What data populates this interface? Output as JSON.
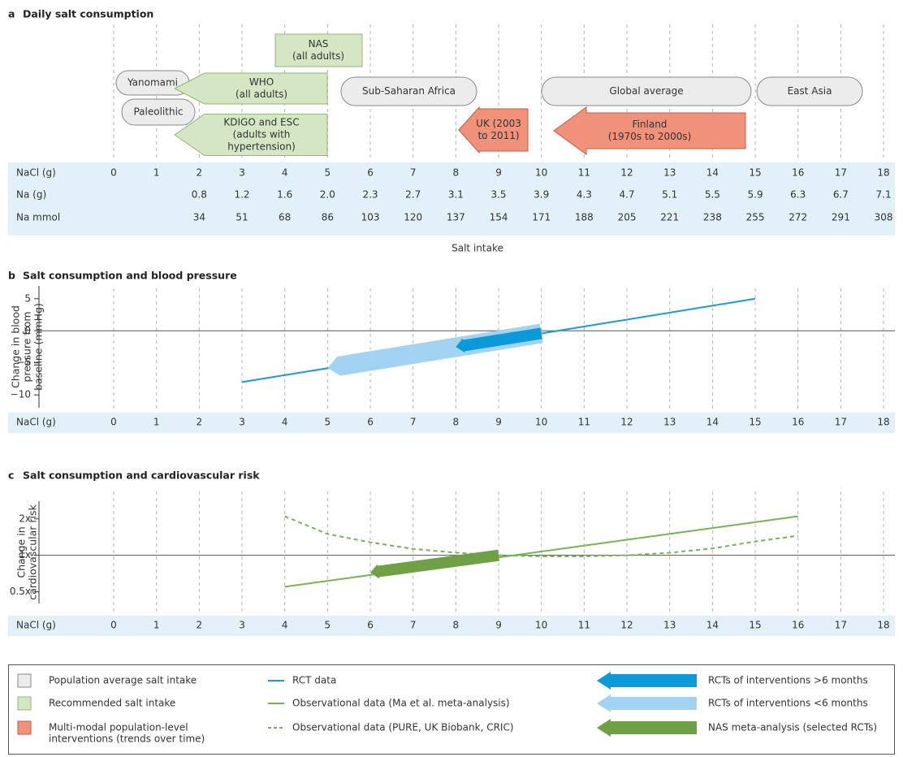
{
  "panel_a": {
    "label": "a",
    "title": "Daily salt consumption",
    "population": [
      {
        "lines": [
          "Yanomami"
        ]
      },
      {
        "lines": [
          "Paleolithic"
        ]
      },
      {
        "lines": [
          "Sub-Saharan Africa"
        ]
      },
      {
        "lines": [
          "Global average"
        ]
      },
      {
        "lines": [
          "East Asia"
        ]
      }
    ],
    "recommended": [
      {
        "lines": [
          "NAS",
          "(all adults)"
        ]
      },
      {
        "lines": [
          "WHO",
          "(all adults)"
        ]
      },
      {
        "lines": [
          "KDIGO and ESC",
          "(adults with",
          "hypertension)"
        ]
      }
    ],
    "interventions": [
      {
        "lines": [
          "UK (2003",
          "to 2011)"
        ]
      },
      {
        "lines": [
          "Finland",
          "(1970s to 2000s)"
        ]
      }
    ],
    "table": [
      {
        "name": "NaCl (g)",
        "cells": [
          "0",
          "1",
          "2",
          "3",
          "4",
          "5",
          "6",
          "7",
          "8",
          "9",
          "10",
          "11",
          "12",
          "13",
          "14",
          "15",
          "16",
          "17",
          "18"
        ]
      },
      {
        "name": "Na (g)",
        "cells": [
          null,
          null,
          "0.8",
          "1.2",
          "1.6",
          "2.0",
          "2.3",
          "2.7",
          "3.1",
          "3.5",
          "3.9",
          "4.3",
          "4.7",
          "5.1",
          "5.5",
          "5.9",
          "6.3",
          "6.7",
          "7.1"
        ]
      },
      {
        "name": "Na mmol",
        "cells": [
          null,
          null,
          "34",
          "51",
          "68",
          "86",
          "103",
          "120",
          "137",
          "154",
          "171",
          "188",
          "205",
          "221",
          "238",
          "255",
          "272",
          "291",
          "308"
        ]
      }
    ],
    "xlabel": "Salt intake"
  },
  "panel_b": {
    "label": "b",
    "title": "Salt consumption and blood pressure",
    "ylabel": [
      "Change in blood",
      "pressure from",
      "baseline  (mmHg)"
    ],
    "ylim": [
      -12,
      7
    ],
    "yticks": [
      5,
      0,
      {
        "value": -5,
        "label": "−5"
      },
      {
        "value": -10,
        "label": "−10"
      }
    ],
    "axis_name": "NaCl (g)",
    "xticks": [
      0,
      1,
      2,
      3,
      4,
      5,
      6,
      7,
      8,
      9,
      10,
      11,
      12,
      13,
      14,
      15,
      16,
      17,
      18
    ],
    "rct": {
      "x": [
        3,
        15
      ],
      "y": [
        -8,
        5
      ],
      "color": "#1b9ad6"
    },
    "arrows": [
      {
        "x": [
          10,
          5
        ],
        "y": [
          -0.4,
          -5.8
        ],
        "color": "#a3d3f2"
      },
      {
        "x": [
          10,
          8
        ],
        "y": [
          -0.4,
          -2.5
        ],
        "color": "#0b9ad8"
      }
    ]
  },
  "panel_c": {
    "label": "c",
    "title": "Salt consumption and cardiovascular risk",
    "ylabel": [
      "Change in",
      "cardiovascular risk"
    ],
    "log_scale": true,
    "ylim": [
      0.4,
      2.8
    ],
    "yticks": [
      {
        "value": 2,
        "label": "2x"
      },
      {
        "value": 1,
        "label": "1x"
      },
      {
        "value": 0.5,
        "label": "0.5x"
      }
    ],
    "axis_name": "NaCl (g)",
    "xticks": [
      0,
      1,
      2,
      3,
      4,
      5,
      6,
      7,
      8,
      9,
      10,
      11,
      12,
      13,
      14,
      15,
      16,
      17,
      18
    ],
    "observational": {
      "x": [
        4,
        16
      ],
      "y": [
        0.55,
        2.1
      ],
      "color": "#77b255"
    },
    "cohort": {
      "x": [
        4,
        5,
        6,
        7,
        8,
        9,
        10,
        11,
        12,
        13,
        14,
        15,
        16
      ],
      "y": [
        2.1,
        1.5,
        1.28,
        1.13,
        1.05,
        1.0,
        0.98,
        0.98,
        1.0,
        1.05,
        1.14,
        1.3,
        1.45
      ],
      "color": "#77b255"
    },
    "arrows": [
      {
        "x": [
          9,
          6
        ],
        "y": [
          1.0,
          0.72
        ],
        "color": "#6fa046"
      }
    ]
  },
  "legend": {
    "population": [
      "Population average salt intake"
    ],
    "recommended": [
      "Recommended salt intake"
    ],
    "interventions": [
      "Multi-modal population-level",
      "interventions (trends over time)"
    ],
    "rct": "RCT data",
    "observational": "Observational data (Ma et al. meta-analysis)",
    "cohort": "Observational data (PURE, UK Biobank, CRIC)",
    "rct_long": "RCTs of interventions >6 months",
    "rct_short": "RCTs of interventions <6 months",
    "nas": "NAS meta-analysis (selected RCTs)"
  }
}
